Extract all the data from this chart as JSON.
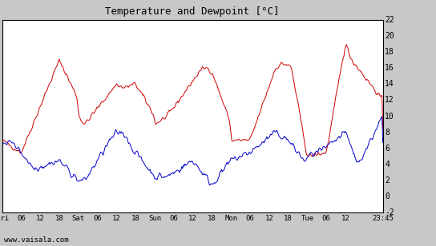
{
  "title": "Temperature and Dewpoint [’C]",
  "ylabel_right_ticks": [
    -2,
    0,
    2,
    4,
    6,
    8,
    10,
    12,
    14,
    16,
    18,
    20,
    22
  ],
  "ylim": [
    -2,
    22
  ],
  "background_color": "#c8c8c8",
  "plot_bg_color": "#ffffff",
  "grid_color": "#bbbbbb",
  "temp_color": "#cc0000",
  "dew_color": "#0000cc",
  "watermark": "www.vaisala.com",
  "xtick_labels": [
    "Fri",
    "06",
    "12",
    "18",
    "Sat",
    "06",
    "12",
    "18",
    "Sun",
    "06",
    "12",
    "18",
    "Mon",
    "06",
    "12",
    "18",
    "Tue",
    "06",
    "12",
    "23:45"
  ],
  "line_width": 0.7,
  "title_text": "Temperature and Dewpoint [’C]"
}
